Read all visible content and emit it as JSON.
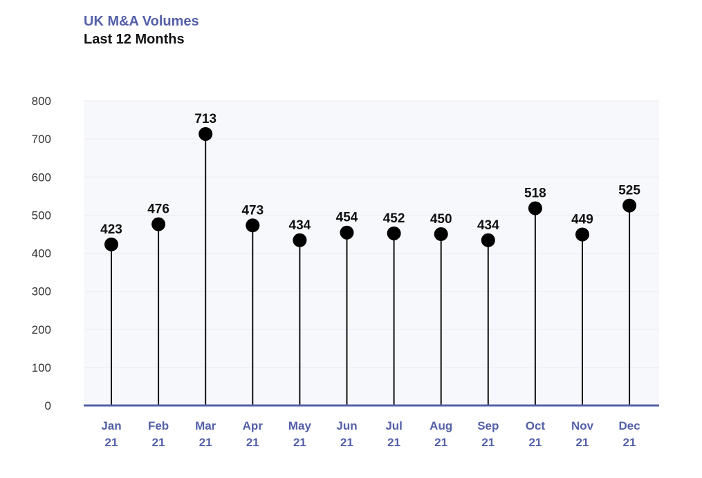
{
  "header": {
    "title": "UK M&A Volumes",
    "subtitle": "Last 12 Months"
  },
  "colors": {
    "title": "#5460a8",
    "axis_line": "#5460a8",
    "x_labels": "#5460a8",
    "markers": "#000000",
    "plot_band": "#f7f8fc"
  },
  "chart_data": {
    "type": "scatter",
    "style": "lollipop",
    "title": "UK M&A Volumes",
    "subtitle": "Last 12 Months",
    "categories": [
      [
        "Jan",
        "21"
      ],
      [
        "Feb",
        "21"
      ],
      [
        "Mar",
        "21"
      ],
      [
        "Apr",
        "21"
      ],
      [
        "May",
        "21"
      ],
      [
        "Jun",
        "21"
      ],
      [
        "Jul",
        "21"
      ],
      [
        "Aug",
        "21"
      ],
      [
        "Sep",
        "21"
      ],
      [
        "Oct",
        "21"
      ],
      [
        "Nov",
        "21"
      ],
      [
        "Dec",
        "21"
      ]
    ],
    "values": [
      423,
      476,
      713,
      473,
      434,
      454,
      452,
      450,
      434,
      518,
      449,
      525
    ],
    "value_labels": [
      "423",
      "476",
      "713",
      "473",
      "434",
      "454",
      "452",
      "450",
      "434",
      "518",
      "449",
      "525"
    ],
    "y_ticks": [
      0,
      100,
      200,
      300,
      400,
      500,
      600,
      700,
      800
    ],
    "ylim": [
      0,
      800
    ],
    "grid": true,
    "legend": "none"
  }
}
